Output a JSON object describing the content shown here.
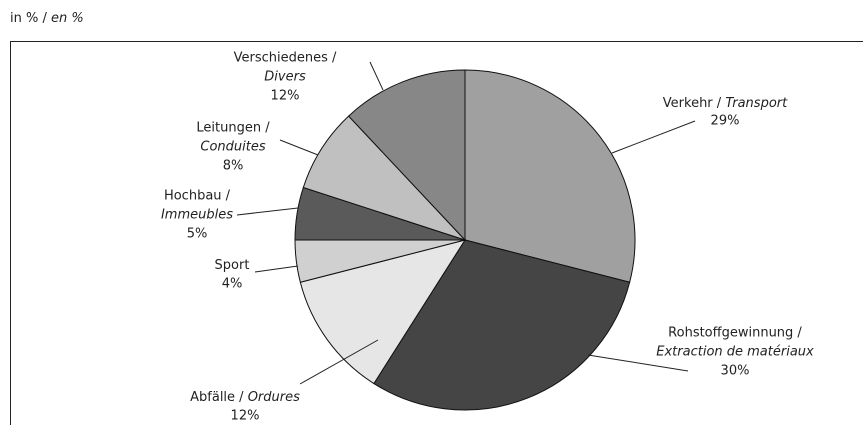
{
  "chart_data": {
    "type": "pie",
    "subtitle": [
      "in % / ",
      "en %"
    ],
    "categories": [
      [
        "Verkehr / ",
        "Transport"
      ],
      [
        "Rohstoffgewinnung / ",
        "Extraction de matériaux"
      ],
      [
        "Abfälle / ",
        "Ordures"
      ],
      [
        "Sport",
        null
      ],
      [
        "Hochbau / ",
        "Immeubles"
      ],
      [
        "Leitungen / ",
        "Conduites"
      ],
      [
        "Verschiedenes / ",
        "Divers"
      ]
    ],
    "values": [
      29,
      30,
      12,
      4,
      5,
      8,
      12
    ],
    "value_labels": [
      "29%",
      "30%",
      "12%",
      "4%",
      "5%",
      "8%",
      "12%"
    ],
    "colors": [
      "#a0a0a0",
      "#454545",
      "#e6e6e6",
      "#d0d0d0",
      "#5a5a5a",
      "#c0c0c0",
      "#878787"
    ]
  }
}
